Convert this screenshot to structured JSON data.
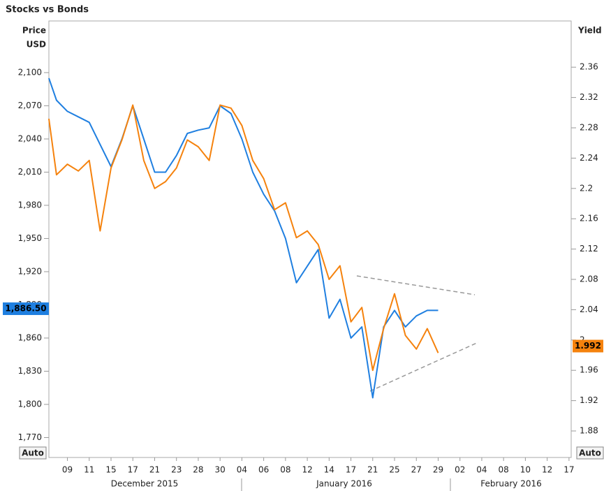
{
  "chart_data": {
    "type": "line",
    "title": "Stocks vs Bonds",
    "ylabel": [
      "Price",
      "USD"
    ],
    "y2label": "Yield",
    "x": [
      -1.7,
      -1,
      0,
      1,
      2,
      3,
      4,
      5,
      6,
      7,
      8,
      9,
      10,
      11,
      12,
      13,
      14,
      15,
      16,
      17,
      18,
      19,
      20,
      21,
      22,
      23,
      24,
      25,
      26,
      27,
      28,
      29,
      30,
      31,
      32,
      33,
      34
    ],
    "xlim": [
      -1.7,
      46.2
    ],
    "xticks": [
      {
        "value": 0,
        "label": "09"
      },
      {
        "value": 2,
        "label": "11"
      },
      {
        "value": 4,
        "label": "15"
      },
      {
        "value": 6,
        "label": "17"
      },
      {
        "value": 8,
        "label": "21"
      },
      {
        "value": 10,
        "label": "23"
      },
      {
        "value": 12,
        "label": "28"
      },
      {
        "value": 14,
        "label": "30"
      },
      {
        "value": 16,
        "label": "04"
      },
      {
        "value": 18,
        "label": "06"
      },
      {
        "value": 20,
        "label": "08"
      },
      {
        "value": 22,
        "label": "12"
      },
      {
        "value": 24,
        "label": "14"
      },
      {
        "value": 26,
        "label": "17"
      },
      {
        "value": 28,
        "label": "21"
      },
      {
        "value": 30,
        "label": "25"
      },
      {
        "value": 32,
        "label": "27"
      },
      {
        "value": 34,
        "label": "29"
      },
      {
        "value": 36,
        "label": "02"
      },
      {
        "value": 38,
        "label": "04"
      },
      {
        "value": 40,
        "label": "08"
      },
      {
        "value": 42,
        "label": "10"
      },
      {
        "value": 44,
        "label": "12"
      },
      {
        "value": 46,
        "label": "17"
      }
    ],
    "months": [
      "December 2015",
      "January 2016",
      "February 2016"
    ],
    "ylim": [
      1752,
      2146.7
    ],
    "yticks": [
      {
        "value": 2100,
        "label": "2,100"
      },
      {
        "value": 2070,
        "label": "2,070"
      },
      {
        "value": 2040,
        "label": "2,040"
      },
      {
        "value": 2010,
        "label": "2,010"
      },
      {
        "value": 1980,
        "label": "1,980"
      },
      {
        "value": 1950,
        "label": "1,950"
      },
      {
        "value": 1920,
        "label": "1,920"
      },
      {
        "value": 1890,
        "label": "1,890"
      },
      {
        "value": 1860,
        "label": "1,860"
      },
      {
        "value": 1830,
        "label": "1,830"
      },
      {
        "value": 1800,
        "label": "1,800"
      },
      {
        "value": 1770,
        "label": "1,770"
      }
    ],
    "y2lim": [
      1.845,
      2.421
    ],
    "y2ticks": [
      2.36,
      2.32,
      2.28,
      2.24,
      2.2,
      2.16,
      2.12,
      2.08,
      2.04,
      2,
      1.96,
      1.92,
      1.88
    ],
    "series": [
      {
        "name": "Stocks",
        "color": "#1f7fe0",
        "axis": "y",
        "values": [
          2095,
          2075,
          2065,
          2060,
          2055,
          2035,
          2015,
          2040,
          2070,
          2040,
          2010,
          2010,
          2025,
          2045,
          2048,
          2050,
          2070,
          2063,
          2040,
          2010,
          1990,
          1975,
          1950,
          1910,
          1925,
          1940,
          1878,
          1895,
          1860,
          1870,
          1806,
          1870,
          1885,
          1870,
          1880,
          1885,
          1885
        ]
      },
      {
        "name": "Bonds",
        "color": "#f5820d",
        "axis": "y2",
        "values": [
          2.292,
          2.218,
          2.232,
          2.223,
          2.237,
          2.144,
          2.227,
          2.264,
          2.31,
          2.237,
          2.2,
          2.209,
          2.227,
          2.264,
          2.255,
          2.237,
          2.31,
          2.306,
          2.283,
          2.237,
          2.213,
          2.172,
          2.181,
          2.135,
          2.144,
          2.126,
          2.08,
          2.098,
          2.024,
          2.043,
          1.96,
          2.015,
          2.061,
          2.006,
          1.988,
          2.015,
          1.983
        ]
      }
    ],
    "last_labels": [
      {
        "value": 1886.5,
        "label": "1,886.50"
      },
      {
        "value": 1.992,
        "label": "1.992"
      }
    ],
    "buttons": [
      "Auto",
      "Auto"
    ]
  }
}
